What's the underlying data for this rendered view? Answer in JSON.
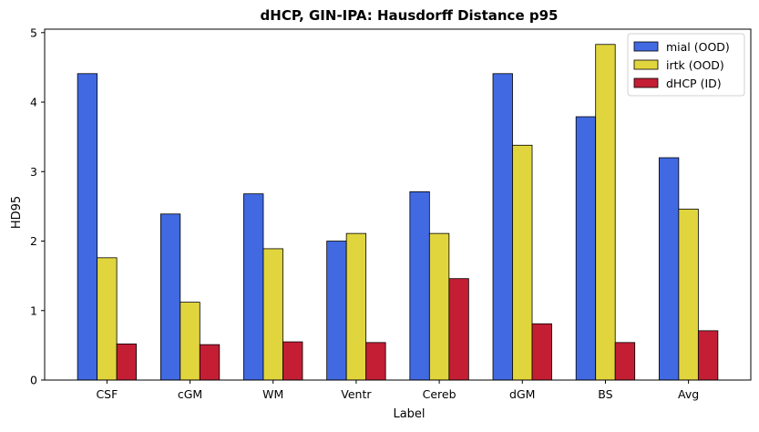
{
  "chart_data": {
    "type": "bar",
    "title": "dHCP, GIN-IPA: Hausdorff Distance p95",
    "xlabel": "Label",
    "ylabel": "HD95",
    "ylim": [
      0,
      5.05
    ],
    "yticks": [
      0,
      1,
      2,
      3,
      4,
      5
    ],
    "categories": [
      "CSF",
      "cGM",
      "WM",
      "Ventr",
      "Cereb",
      "dGM",
      "BS",
      "Avg"
    ],
    "series": [
      {
        "name": "mial (OOD)",
        "color": "#4169e1",
        "values": [
          4.41,
          2.39,
          2.68,
          2.0,
          2.71,
          4.41,
          3.79,
          3.2
        ]
      },
      {
        "name": "irtk (OOD)",
        "color": "#e1d53e",
        "values": [
          1.76,
          1.12,
          1.89,
          2.11,
          2.11,
          3.38,
          4.83,
          2.46
        ]
      },
      {
        "name": "dHCP (ID)",
        "color": "#c41e35",
        "values": [
          0.52,
          0.51,
          0.55,
          0.54,
          1.46,
          0.81,
          0.54,
          0.71
        ]
      }
    ],
    "legend_position": "top-right",
    "grid": false
  }
}
